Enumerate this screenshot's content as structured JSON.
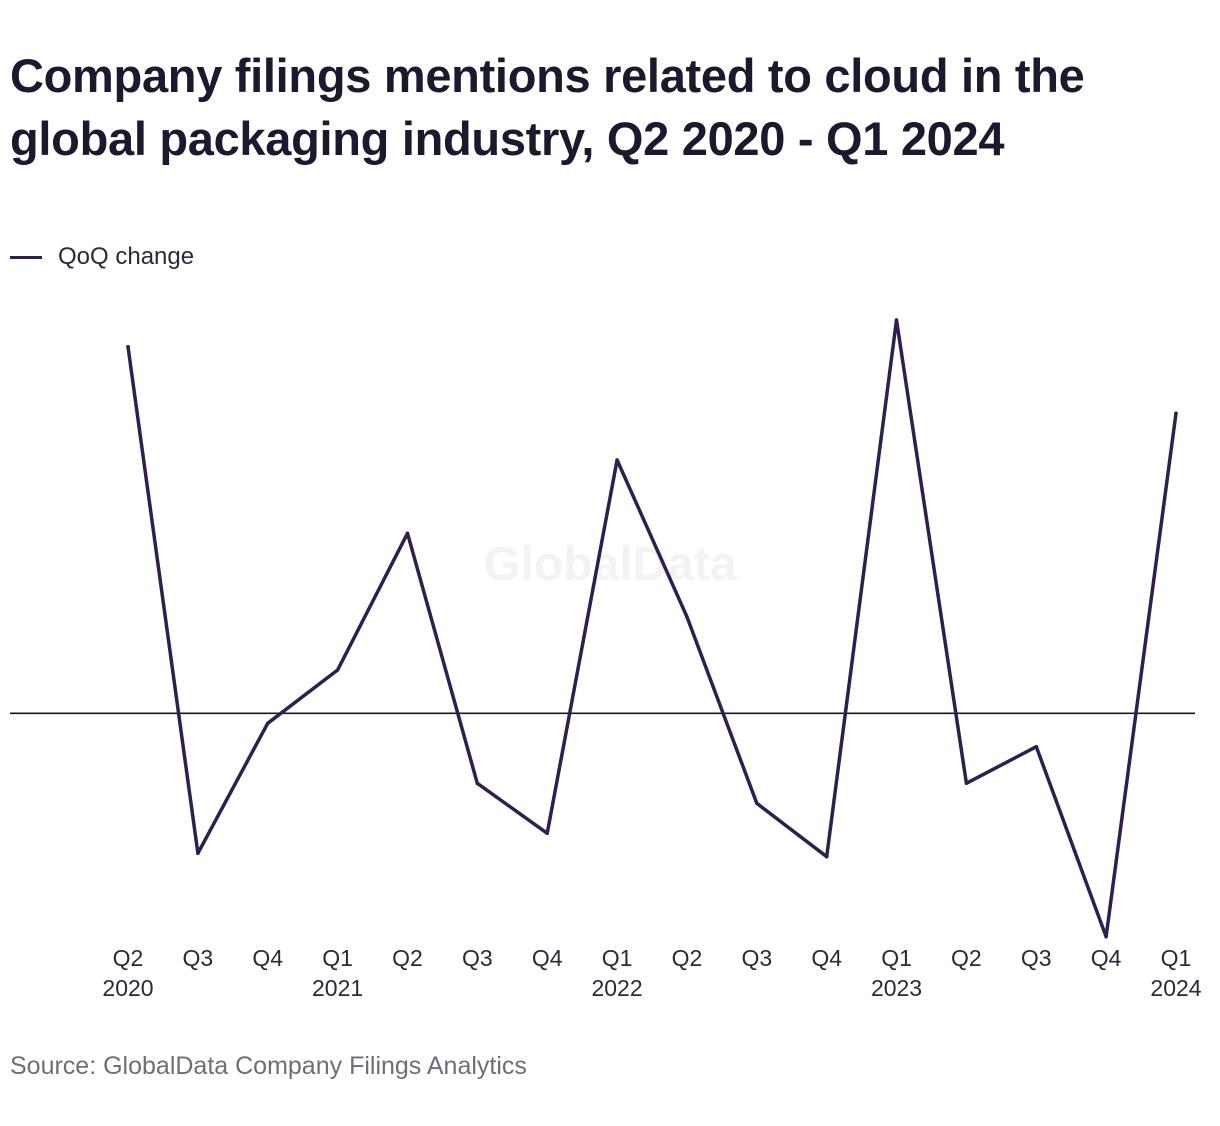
{
  "title": "Company filings mentions related to cloud in the global packaging industry, Q2 2020 - Q1 2024",
  "source": "Source: GlobalData Company Filings Analytics",
  "watermark": "GlobalData",
  "colors": {
    "line": "#2e1f4f",
    "zero_line": "#1a1a1a",
    "title": "#1a1a2e",
    "source_text": "#6e6e78"
  },
  "chart_data": {
    "type": "line",
    "x": [
      "Q2 2020",
      "Q3 2020",
      "Q4 2020",
      "Q1 2021",
      "Q2 2021",
      "Q3 2021",
      "Q4 2021",
      "Q1 2022",
      "Q2 2022",
      "Q3 2022",
      "Q4 2022",
      "Q1 2023",
      "Q2 2023",
      "Q3 2023",
      "Q4 2023",
      "Q1 2024"
    ],
    "tick_labels": [
      {
        "quarter": "Q2",
        "year": "2020"
      },
      {
        "quarter": "Q3",
        "year": ""
      },
      {
        "quarter": "Q4",
        "year": ""
      },
      {
        "quarter": "Q1",
        "year": "2021"
      },
      {
        "quarter": "Q2",
        "year": ""
      },
      {
        "quarter": "Q3",
        "year": ""
      },
      {
        "quarter": "Q4",
        "year": ""
      },
      {
        "quarter": "Q1",
        "year": "2022"
      },
      {
        "quarter": "Q2",
        "year": ""
      },
      {
        "quarter": "Q3",
        "year": ""
      },
      {
        "quarter": "Q4",
        "year": ""
      },
      {
        "quarter": "Q1",
        "year": "2023"
      },
      {
        "quarter": "Q2",
        "year": ""
      },
      {
        "quarter": "Q3",
        "year": ""
      },
      {
        "quarter": "Q4",
        "year": ""
      },
      {
        "quarter": "Q1",
        "year": "2024"
      }
    ],
    "series": [
      {
        "name": "QoQ change",
        "values": [
          55,
          -21,
          -1.5,
          6.5,
          27,
          -10.5,
          -18,
          38,
          14.5,
          -13.5,
          -21.5,
          59,
          -10.5,
          -5,
          -33.5,
          45
        ]
      }
    ],
    "ylim": [
      -37,
      65
    ],
    "zero_line": true,
    "grid": false,
    "legend_position": "top-left",
    "y_axis_labels_shown": false
  }
}
